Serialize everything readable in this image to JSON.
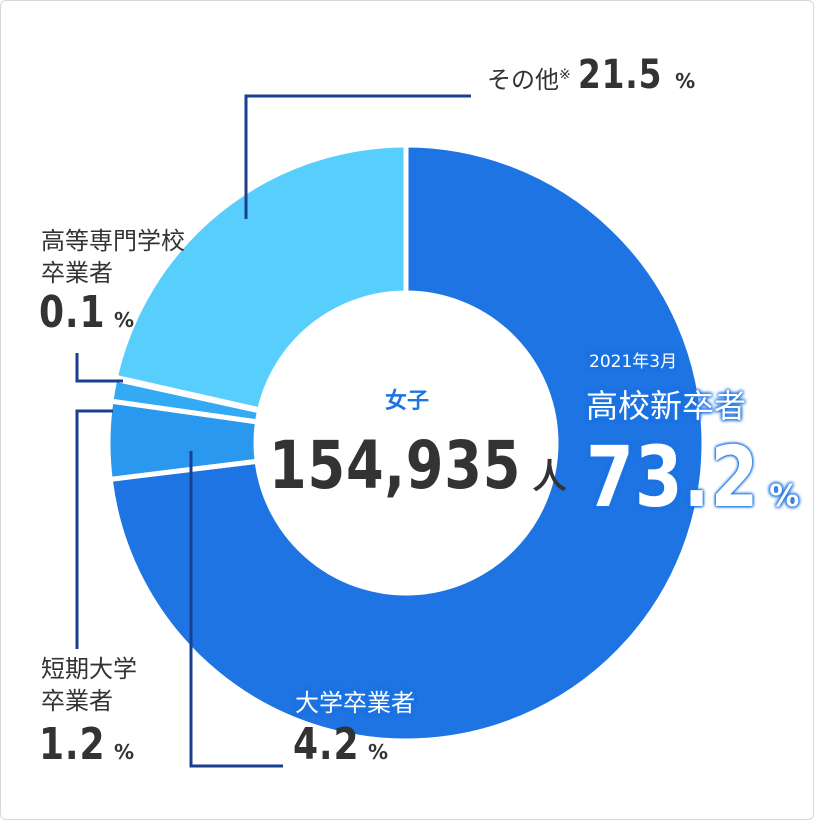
{
  "chart_data": {
    "type": "donut",
    "center_label": "女子",
    "total": "154,935",
    "total_unit": "人",
    "date": "2021年3月",
    "unit": "%",
    "note_mark": "※",
    "categories": [
      "高校新卒者",
      "大学卒業者",
      "短期大学\n卒業者",
      "高等専門学校\n卒業者",
      "その他"
    ],
    "values": [
      73.2,
      4.2,
      1.2,
      0.1,
      21.5
    ],
    "colors": [
      "#1e74e2",
      "#2a98ef",
      "#35aaf4",
      "#45bcf8",
      "#58cefc"
    ]
  }
}
